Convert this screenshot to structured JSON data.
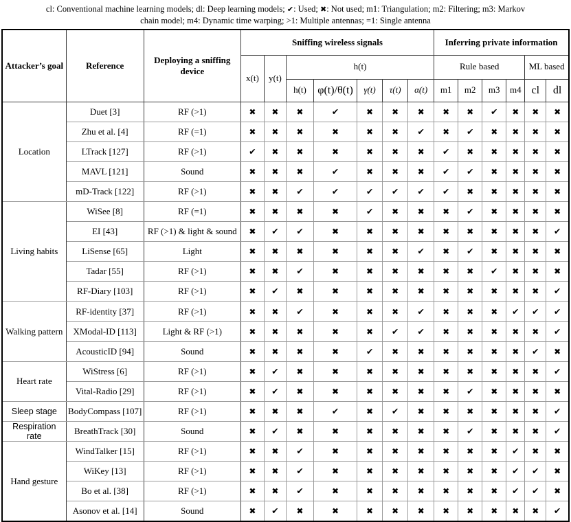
{
  "caption": {
    "line1_a": "cl: Conventional machine learning models; dl: Deep learning models;  ",
    "line1_b": ": Used;  ",
    "line1_c": ": Not used; m1: Triangulation; m2: Filtering; m3: Markov",
    "line2": "chain model; m4: Dynamic time warping; >1: Multiple antennas; =1: Single antenna"
  },
  "glyphs": {
    "used": "✔",
    "not_used": "✖"
  },
  "header": {
    "goal": "Attacker’s goal",
    "reference": "Reference",
    "deploying": "Deploying a sniffing device",
    "sniffing": "Sniffing wireless signals",
    "inferring": "Inferring private information",
    "xt": "x(t)",
    "yt": "y(t)",
    "ht_group": "h(t)",
    "sub": [
      "h(t)",
      "φ(t)/θ(t)",
      "γ(t)",
      "τ(t)",
      "α(t)"
    ],
    "rule_based": "Rule based",
    "ml_based": "ML based",
    "m1": "m1",
    "m2": "m2",
    "m3": "m3",
    "m4": "m4",
    "cl": "cl",
    "dl": "dl"
  },
  "groups": [
    {
      "goal": "Location",
      "rows": [
        {
          "ref": "Duet [3]",
          "device": "RF (>1)",
          "marks": [
            0,
            0,
            0,
            1,
            0,
            0,
            0,
            0,
            0,
            1,
            0,
            0,
            0
          ]
        },
        {
          "ref": "Zhu et al. [4]",
          "device": "RF (=1)",
          "marks": [
            0,
            0,
            0,
            0,
            0,
            0,
            1,
            0,
            1,
            0,
            0,
            0,
            0
          ]
        },
        {
          "ref": "LTrack [127]",
          "device": "RF (>1)",
          "marks": [
            1,
            0,
            0,
            0,
            0,
            0,
            0,
            1,
            0,
            0,
            0,
            0,
            0
          ]
        },
        {
          "ref": "MAVL [121]",
          "device": "Sound",
          "marks": [
            0,
            0,
            0,
            1,
            0,
            0,
            0,
            1,
            1,
            0,
            0,
            0,
            0
          ]
        },
        {
          "ref": "mD-Track [122]",
          "device": "RF (>1)",
          "marks": [
            0,
            0,
            1,
            1,
            1,
            1,
            1,
            1,
            0,
            0,
            0,
            0,
            0
          ]
        }
      ]
    },
    {
      "goal": "Living habits",
      "rows": [
        {
          "ref": "WiSee [8]",
          "device": "RF (=1)",
          "marks": [
            0,
            0,
            0,
            0,
            1,
            0,
            0,
            0,
            1,
            0,
            0,
            0,
            0
          ]
        },
        {
          "ref": "EI [43]",
          "device": "RF (>1) & light & sound",
          "marks": [
            0,
            1,
            1,
            0,
            0,
            0,
            0,
            0,
            0,
            0,
            0,
            0,
            1
          ]
        },
        {
          "ref": "LiSense [65]",
          "device": "Light",
          "marks": [
            0,
            0,
            0,
            0,
            0,
            0,
            1,
            0,
            1,
            0,
            0,
            0,
            0
          ]
        },
        {
          "ref": "Tadar [55]",
          "device": "RF (>1)",
          "marks": [
            0,
            0,
            1,
            0,
            0,
            0,
            0,
            0,
            0,
            1,
            0,
            0,
            0
          ]
        },
        {
          "ref": "RF-Diary [103]",
          "device": "RF (>1)",
          "marks": [
            0,
            1,
            0,
            0,
            0,
            0,
            0,
            0,
            0,
            0,
            0,
            0,
            1
          ]
        }
      ]
    },
    {
      "goal": "Walking pattern",
      "rows": [
        {
          "ref": "RF-identity [37]",
          "device": "RF (>1)",
          "marks": [
            0,
            0,
            1,
            0,
            0,
            0,
            1,
            0,
            0,
            0,
            1,
            1,
            1
          ]
        },
        {
          "ref": "XModal-ID [113]",
          "device": "Light & RF (>1)",
          "marks": [
            0,
            0,
            0,
            0,
            0,
            1,
            1,
            0,
            0,
            0,
            0,
            0,
            1
          ]
        },
        {
          "ref": "AcousticID [94]",
          "device": "Sound",
          "marks": [
            0,
            0,
            0,
            0,
            1,
            0,
            0,
            0,
            0,
            0,
            0,
            1,
            0
          ]
        }
      ]
    },
    {
      "goal": "Heart rate",
      "rows": [
        {
          "ref": "WiStress [6]",
          "device": "RF (>1)",
          "marks": [
            0,
            1,
            0,
            0,
            0,
            0,
            0,
            0,
            0,
            0,
            0,
            0,
            1
          ]
        },
        {
          "ref": "Vital-Radio [29]",
          "device": "RF (>1)",
          "marks": [
            0,
            1,
            0,
            0,
            0,
            0,
            0,
            0,
            1,
            0,
            0,
            0,
            0
          ]
        }
      ]
    },
    {
      "goal": "Sleep stage",
      "label_style": "sans",
      "rows": [
        {
          "ref": "BodyCompass [107]",
          "device": "RF (>1)",
          "marks": [
            0,
            0,
            0,
            1,
            0,
            1,
            0,
            0,
            0,
            0,
            0,
            0,
            1
          ]
        }
      ]
    },
    {
      "goal": "Respiration rate",
      "label_style": "sans",
      "rows": [
        {
          "ref": "BreathTrack [30]",
          "device": "Sound",
          "marks": [
            0,
            1,
            0,
            0,
            0,
            0,
            0,
            0,
            1,
            0,
            0,
            0,
            1
          ]
        }
      ]
    },
    {
      "goal": "Hand gesture",
      "rows": [
        {
          "ref": "WindTalker [15]",
          "device": "RF (>1)",
          "marks": [
            0,
            0,
            1,
            0,
            0,
            0,
            0,
            0,
            0,
            0,
            1,
            0,
            0
          ]
        },
        {
          "ref": "WiKey [13]",
          "device": "RF (>1)",
          "marks": [
            0,
            0,
            1,
            0,
            0,
            0,
            0,
            0,
            0,
            0,
            1,
            1,
            0
          ]
        },
        {
          "ref": "Bo et al. [38]",
          "device": "RF (>1)",
          "marks": [
            0,
            0,
            1,
            0,
            0,
            0,
            0,
            0,
            0,
            0,
            1,
            1,
            0
          ]
        },
        {
          "ref": "Asonov et al. [14]",
          "device": "Sound",
          "marks": [
            0,
            1,
            0,
            0,
            0,
            0,
            0,
            0,
            0,
            0,
            0,
            0,
            1
          ]
        }
      ]
    }
  ]
}
